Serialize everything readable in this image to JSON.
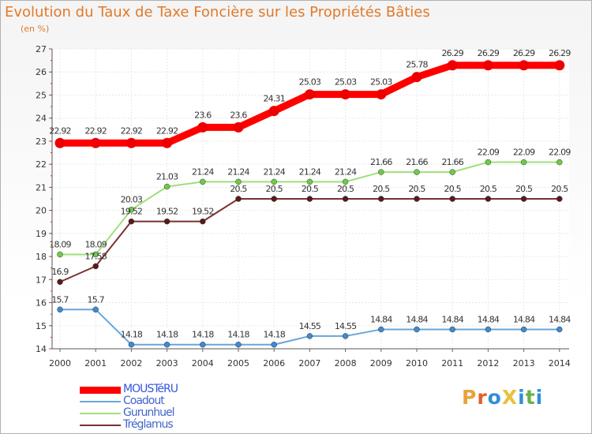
{
  "title": "Evolution du Taux de Taxe Foncière sur les Propriétés Bâties",
  "unit_label": "(en %)",
  "logo": {
    "text": "ProXiti",
    "letters": [
      "P",
      "r",
      "o",
      "X",
      "i",
      "t",
      "i"
    ],
    "letter_colors": [
      "#e8a23c",
      "#e06030",
      "#2f8fd6",
      "#e8c23c",
      "#2f8fd6",
      "#6ab04c",
      "#2f8fd6"
    ]
  },
  "chart_data": {
    "type": "line",
    "title": "Evolution du Taux de Taxe Foncière sur les Propriétés Bâties",
    "ylabel": "(en %)",
    "xlabel": "",
    "x": [
      "2000",
      "2001",
      "2002",
      "2003",
      "2004",
      "2005",
      "2006",
      "2007",
      "2008",
      "2009",
      "2010",
      "2011",
      "2012",
      "2013",
      "2014"
    ],
    "ylim": [
      14,
      27
    ],
    "yticks": [
      "14",
      "15",
      "16",
      "17",
      "18",
      "19",
      "20",
      "21",
      "22",
      "23",
      "24",
      "25",
      "26",
      "27"
    ],
    "grid": true,
    "legend_position": "bottom-left",
    "series": [
      {
        "name": "MOUSTéRU",
        "color": "#ff0000",
        "marker_color": "#ee0000",
        "line_role": "thick",
        "values": [
          22.92,
          22.92,
          22.92,
          22.92,
          23.6,
          23.6,
          24.31,
          25.03,
          25.03,
          25.03,
          25.78,
          26.29,
          26.29,
          26.29,
          26.29
        ],
        "labels": [
          "22.92",
          "22.92",
          "22.92",
          "22.92",
          "23.6",
          "23.6",
          "24.31",
          "25.03",
          "25.03",
          "25.03",
          "25.78",
          "26.29",
          "26.29",
          "26.29",
          "26.29"
        ]
      },
      {
        "name": "Coadout",
        "color": "#6aa6d8",
        "marker_color": "#3f8ad0",
        "line_role": "thin",
        "values": [
          15.7,
          15.7,
          14.18,
          14.18,
          14.18,
          14.18,
          14.18,
          14.55,
          14.55,
          14.84,
          14.84,
          14.84,
          14.84,
          14.84,
          14.84
        ],
        "labels": [
          "15.7",
          "15.7",
          "14.18",
          "14.18",
          "14.18",
          "14.18",
          "14.18",
          "14.55",
          "14.55",
          "14.84",
          "14.84",
          "14.84",
          "14.84",
          "14.84",
          "14.84"
        ]
      },
      {
        "name": "Gurunhuel",
        "color": "#9ee07a",
        "marker_color": "#6fcc45",
        "line_role": "thin",
        "values": [
          18.09,
          18.09,
          20.03,
          21.03,
          21.24,
          21.24,
          21.24,
          21.24,
          21.24,
          21.66,
          21.66,
          21.66,
          22.09,
          22.09,
          22.09
        ],
        "labels": [
          "18.09",
          "18.09",
          "20.03",
          "21.03",
          "21.24",
          "21.24",
          "21.24",
          "21.24",
          "21.24",
          "21.66",
          "21.66",
          "21.66",
          "22.09",
          "22.09",
          "22.09"
        ]
      },
      {
        "name": "Tréglamus",
        "color": "#7a3030",
        "marker_color": "#5a1a1a",
        "line_role": "thin",
        "values": [
          16.9,
          17.58,
          19.52,
          19.52,
          19.52,
          20.5,
          20.5,
          20.5,
          20.5,
          20.5,
          20.5,
          20.5,
          20.5,
          20.5,
          20.5
        ],
        "labels": [
          "16.9",
          "17.58",
          "19.52",
          "19.52",
          "19.52",
          "20.5",
          "20.5",
          "20.5",
          "20.5",
          "20.5",
          "20.5",
          "20.5",
          "20.5",
          "20.5",
          "20.5"
        ]
      }
    ]
  }
}
